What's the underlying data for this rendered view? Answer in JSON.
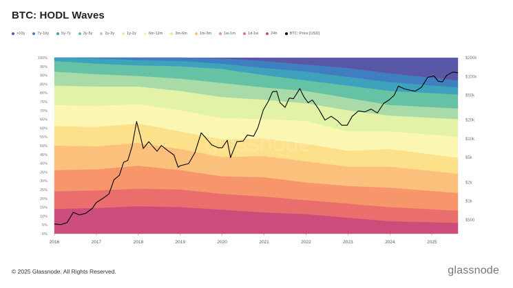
{
  "page": {
    "title": "BTC: HODL Waves",
    "footer": "© 2025 Glassnode. All Rights Reserved.",
    "brand": "glassnode",
    "watermark": "glassnode"
  },
  "chart_data": {
    "type": "area",
    "title": "BTC: HODL Waves",
    "stacked": true,
    "x": [
      "2016",
      "2017",
      "2018",
      "2019",
      "2020",
      "2021",
      "2022",
      "2023",
      "2024",
      "2025"
    ],
    "x_tick_labels": [
      "2016",
      "2017",
      "2018",
      "2019",
      "2020",
      "2021",
      "2022",
      "2023",
      "2024",
      "2025"
    ],
    "y_tick_labels": [
      "0%",
      "5%",
      "10%",
      "15%",
      "20%",
      "25%",
      "30%",
      "35%",
      "40%",
      "45%",
      "50%",
      "55%",
      "60%",
      "65%",
      "70%",
      "75%",
      "80%",
      "85%",
      "90%",
      "95%",
      "100%"
    ],
    "ylim": [
      0,
      100
    ],
    "y2_scale": "log",
    "y2_tick_labels": [
      "$500",
      "$1k",
      "$2k",
      "$5k",
      "$10k",
      "$20k",
      "$50k",
      "$100k",
      "$200k"
    ],
    "y2_tick_values": [
      500,
      1000,
      2000,
      5000,
      10000,
      20000,
      50000,
      100000,
      200000
    ],
    "y2lim": [
      300,
      200000
    ],
    "legend_position": "top-left",
    "grid": false,
    "series": [
      {
        "name": ">10y",
        "color": "#5b57a7",
        "values": [
          0,
          0,
          0,
          0,
          0.5,
          2,
          4,
          6,
          9,
          13
        ]
      },
      {
        "name": "7y-10y",
        "color": "#3f7fbf",
        "values": [
          0,
          0.5,
          1.5,
          2,
          3,
          4,
          4,
          5,
          5,
          4
        ]
      },
      {
        "name": "5y-7y",
        "color": "#3ea2bd",
        "values": [
          2,
          3,
          3,
          3,
          3,
          4,
          5,
          5,
          5,
          4
        ]
      },
      {
        "name": "3y-5y",
        "color": "#66c2a4",
        "values": [
          6,
          6,
          6,
          7,
          8,
          7,
          6,
          7,
          8,
          8
        ]
      },
      {
        "name": "2y-3y",
        "color": "#a8dba8",
        "values": [
          8,
          7,
          6,
          7,
          8,
          7,
          7,
          7,
          6,
          6
        ]
      },
      {
        "name": "1y-2y",
        "color": "#e2f2a6",
        "values": [
          11,
          11,
          10,
          11,
          12,
          11,
          10,
          12,
          9,
          10
        ]
      },
      {
        "name": "6m-12m",
        "color": "#fbf7b2",
        "values": [
          12,
          12,
          11,
          12,
          12,
          11,
          13,
          11,
          10,
          12
        ]
      },
      {
        "name": "3m-6m",
        "color": "#fde08a",
        "values": [
          11,
          11,
          11,
          10,
          10,
          10,
          10,
          9,
          10,
          9
        ]
      },
      {
        "name": "1m-3m",
        "color": "#fcc07d",
        "values": [
          14,
          13,
          13,
          12,
          11,
          12,
          12,
          11,
          12,
          11
        ]
      },
      {
        "name": "1w-1m",
        "color": "#f6966a",
        "values": [
          12,
          12,
          13,
          11,
          10,
          11,
          10,
          10,
          11,
          10
        ]
      },
      {
        "name": "1d-1w",
        "color": "#ea6f6c",
        "values": [
          10,
          10,
          10,
          10,
          9,
          9,
          8,
          8,
          8,
          7
        ]
      },
      {
        "name": "24h",
        "color": "#cc4c7c",
        "values": [
          14,
          14.5,
          15.5,
          15,
          13.5,
          12,
          11,
          9,
          7,
          6
        ]
      },
      {
        "name": "BTC: Price [USD]",
        "color": "#000000",
        "axis": "right",
        "values": [
          430,
          950,
          14000,
          3800,
          7200,
          30000,
          47000,
          16500,
          42000,
          95000
        ]
      }
    ],
    "price_series": {
      "name": "BTC: Price [USD]",
      "color": "#000000",
      "axis": "right",
      "points": [
        [
          2016.0,
          430
        ],
        [
          2016.15,
          420
        ],
        [
          2016.3,
          450
        ],
        [
          2016.45,
          660
        ],
        [
          2016.6,
          600
        ],
        [
          2016.75,
          640
        ],
        [
          2016.9,
          760
        ],
        [
          2017.0,
          950
        ],
        [
          2017.15,
          1100
        ],
        [
          2017.3,
          1300
        ],
        [
          2017.42,
          2200
        ],
        [
          2017.55,
          2600
        ],
        [
          2017.65,
          4200
        ],
        [
          2017.75,
          4500
        ],
        [
          2017.85,
          7500
        ],
        [
          2017.96,
          19000
        ],
        [
          2018.05,
          11000
        ],
        [
          2018.12,
          7000
        ],
        [
          2018.25,
          9000
        ],
        [
          2018.35,
          7500
        ],
        [
          2018.45,
          6300
        ],
        [
          2018.55,
          7800
        ],
        [
          2018.7,
          6500
        ],
        [
          2018.85,
          5500
        ],
        [
          2018.95,
          3500
        ],
        [
          2019.0,
          3700
        ],
        [
          2019.2,
          4000
        ],
        [
          2019.35,
          6000
        ],
        [
          2019.5,
          12500
        ],
        [
          2019.6,
          10500
        ],
        [
          2019.75,
          8000
        ],
        [
          2019.9,
          7200
        ],
        [
          2020.0,
          7200
        ],
        [
          2020.12,
          9500
        ],
        [
          2020.2,
          5000
        ],
        [
          2020.35,
          9000
        ],
        [
          2020.5,
          9200
        ],
        [
          2020.6,
          11500
        ],
        [
          2020.75,
          11000
        ],
        [
          2020.85,
          15000
        ],
        [
          2020.98,
          29000
        ],
        [
          2021.1,
          40000
        ],
        [
          2021.2,
          57000
        ],
        [
          2021.3,
          58000
        ],
        [
          2021.38,
          38000
        ],
        [
          2021.5,
          32000
        ],
        [
          2021.6,
          45000
        ],
        [
          2021.7,
          44000
        ],
        [
          2021.85,
          64000
        ],
        [
          2021.95,
          47000
        ],
        [
          2022.05,
          38000
        ],
        [
          2022.15,
          42000
        ],
        [
          2022.3,
          30000
        ],
        [
          2022.45,
          20000
        ],
        [
          2022.6,
          23000
        ],
        [
          2022.75,
          19500
        ],
        [
          2022.85,
          16500
        ],
        [
          2022.98,
          16500
        ],
        [
          2023.1,
          23000
        ],
        [
          2023.25,
          28000
        ],
        [
          2023.4,
          27000
        ],
        [
          2023.55,
          30000
        ],
        [
          2023.7,
          26000
        ],
        [
          2023.85,
          37000
        ],
        [
          2023.98,
          42000
        ],
        [
          2024.1,
          50000
        ],
        [
          2024.2,
          70000
        ],
        [
          2024.35,
          63000
        ],
        [
          2024.5,
          60000
        ],
        [
          2024.6,
          58000
        ],
        [
          2024.75,
          67000
        ],
        [
          2024.9,
          97000
        ],
        [
          2025.05,
          102000
        ],
        [
          2025.15,
          84000
        ],
        [
          2025.25,
          82000
        ],
        [
          2025.35,
          104000
        ],
        [
          2025.5,
          118000
        ],
        [
          2025.62,
          115000
        ]
      ]
    }
  }
}
